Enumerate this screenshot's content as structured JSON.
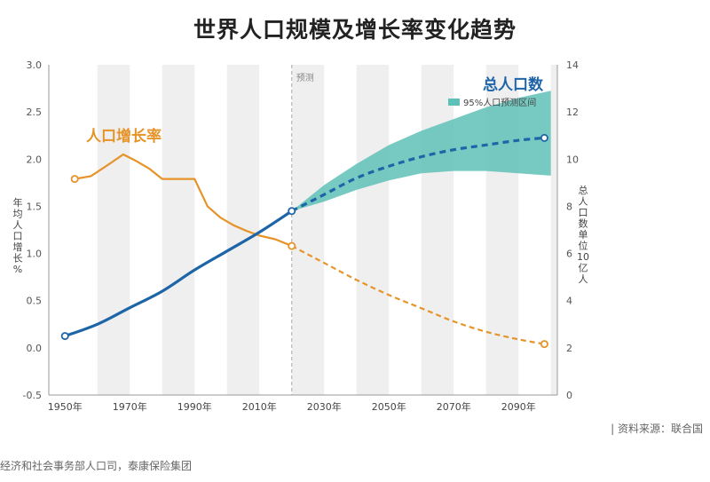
{
  "title": "世界人口规模及增长率变化趋势",
  "source": "| 资料来源：联合国",
  "credit": "经济和社会事务部人口司，泰康保险集团",
  "chart_data": {
    "type": "line",
    "title": "世界人口规模及增长率变化趋势",
    "forecast_label": "预测",
    "forecast_start": 2020,
    "xlim": [
      1945,
      2102
    ],
    "x_ticks": [
      1950,
      1970,
      1990,
      2010,
      2030,
      2050,
      2070,
      2090
    ],
    "x_tick_labels": [
      "1950年",
      "1970年",
      "1990年",
      "2010年",
      "2030年",
      "2050年",
      "2070年",
      "2090年"
    ],
    "y_left": {
      "label": "年均人口增长%",
      "lim": [
        -0.5,
        3.0
      ],
      "ticks": [
        -0.5,
        0,
        0.5,
        1.0,
        1.5,
        2.0,
        2.5,
        3.0
      ],
      "tick_labels": [
        "-0.5",
        "0.0",
        "0.5",
        "1.0",
        "1.5",
        "2.0",
        "2.5",
        "3.0"
      ]
    },
    "y_right": {
      "label": "总人口数单位10亿人",
      "lim": [
        0,
        14
      ],
      "ticks": [
        0,
        2,
        4,
        6,
        8,
        10,
        12,
        14
      ],
      "tick_labels": [
        "0",
        "2",
        "4",
        "6",
        "8",
        "10",
        "12",
        "14"
      ]
    },
    "series": [
      {
        "name": "人口增长率",
        "axis": "left",
        "color": "#E6942A",
        "historical": [
          [
            1953,
            1.79
          ],
          [
            1958,
            1.82
          ],
          [
            1962,
            1.91
          ],
          [
            1968,
            2.05
          ],
          [
            1972,
            1.98
          ],
          [
            1976,
            1.9
          ],
          [
            1980,
            1.79
          ],
          [
            1985,
            1.79
          ],
          [
            1990,
            1.79
          ],
          [
            1994,
            1.5
          ],
          [
            1998,
            1.38
          ],
          [
            2002,
            1.3
          ],
          [
            2006,
            1.24
          ],
          [
            2010,
            1.19
          ],
          [
            2015,
            1.15
          ],
          [
            2020,
            1.08
          ]
        ],
        "projected": [
          [
            2020,
            1.08
          ],
          [
            2030,
            0.9
          ],
          [
            2040,
            0.72
          ],
          [
            2050,
            0.56
          ],
          [
            2060,
            0.42
          ],
          [
            2070,
            0.28
          ],
          [
            2080,
            0.17
          ],
          [
            2090,
            0.09
          ],
          [
            2098,
            0.04
          ]
        ]
      },
      {
        "name": "总人口数",
        "axis": "right",
        "color": "#1E65A8",
        "historical": [
          [
            1950,
            2.5
          ],
          [
            1960,
            3.0
          ],
          [
            1970,
            3.7
          ],
          [
            1980,
            4.4
          ],
          [
            1990,
            5.3
          ],
          [
            2000,
            6.1
          ],
          [
            2010,
            6.9
          ],
          [
            2020,
            7.8
          ]
        ],
        "projected": [
          [
            2020,
            7.8
          ],
          [
            2030,
            8.5
          ],
          [
            2040,
            9.2
          ],
          [
            2050,
            9.7
          ],
          [
            2060,
            10.1
          ],
          [
            2070,
            10.4
          ],
          [
            2080,
            10.6
          ],
          [
            2090,
            10.8
          ],
          [
            2098,
            10.9
          ]
        ]
      }
    ],
    "band": {
      "name": "95%人口预测区间",
      "color": "#5EC1B7",
      "x": [
        2020,
        2030,
        2040,
        2050,
        2060,
        2070,
        2080,
        2090,
        2100
      ],
      "upper": [
        7.8,
        8.9,
        9.8,
        10.6,
        11.2,
        11.7,
        12.2,
        12.6,
        12.9
      ],
      "lower": [
        7.8,
        8.2,
        8.7,
        9.1,
        9.4,
        9.5,
        9.5,
        9.4,
        9.3
      ]
    }
  }
}
